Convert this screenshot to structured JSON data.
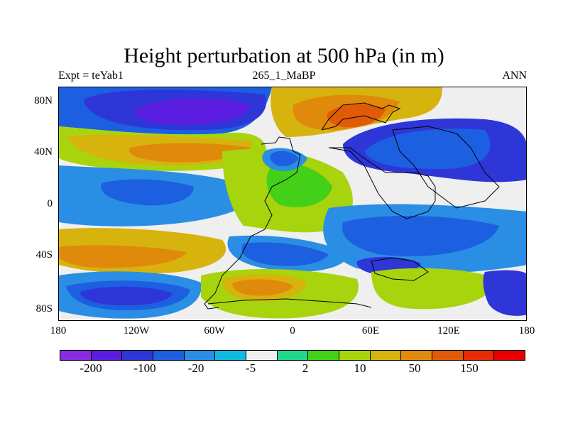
{
  "header": {
    "title": "Height perturbation at 500 hPa (in m)",
    "left_label": "Expt = teYab1",
    "center_label": "265_1_MaBP",
    "right_label": "ANN"
  },
  "axes": {
    "y_ticks": [
      "80N",
      "40N",
      "0",
      "40S",
      "80S"
    ],
    "x_ticks": [
      "180",
      "120W",
      "60W",
      "0",
      "60E",
      "120E",
      "180"
    ]
  },
  "colorbar": {
    "colors": [
      "#8a2be2",
      "#5b1ee0",
      "#2f36d8",
      "#1c5fe0",
      "#2a8ee4",
      "#11b9e0",
      "#efefef",
      "#1fd88a",
      "#44cf18",
      "#a8d40e",
      "#d6b30d",
      "#e08a0b",
      "#e05a08",
      "#e82a06",
      "#e60000"
    ],
    "labels": [
      "-200",
      "-100",
      "-20",
      "-5",
      "2",
      "10",
      "50",
      "150"
    ]
  },
  "legend": {
    "palette_note": ""
  }
}
